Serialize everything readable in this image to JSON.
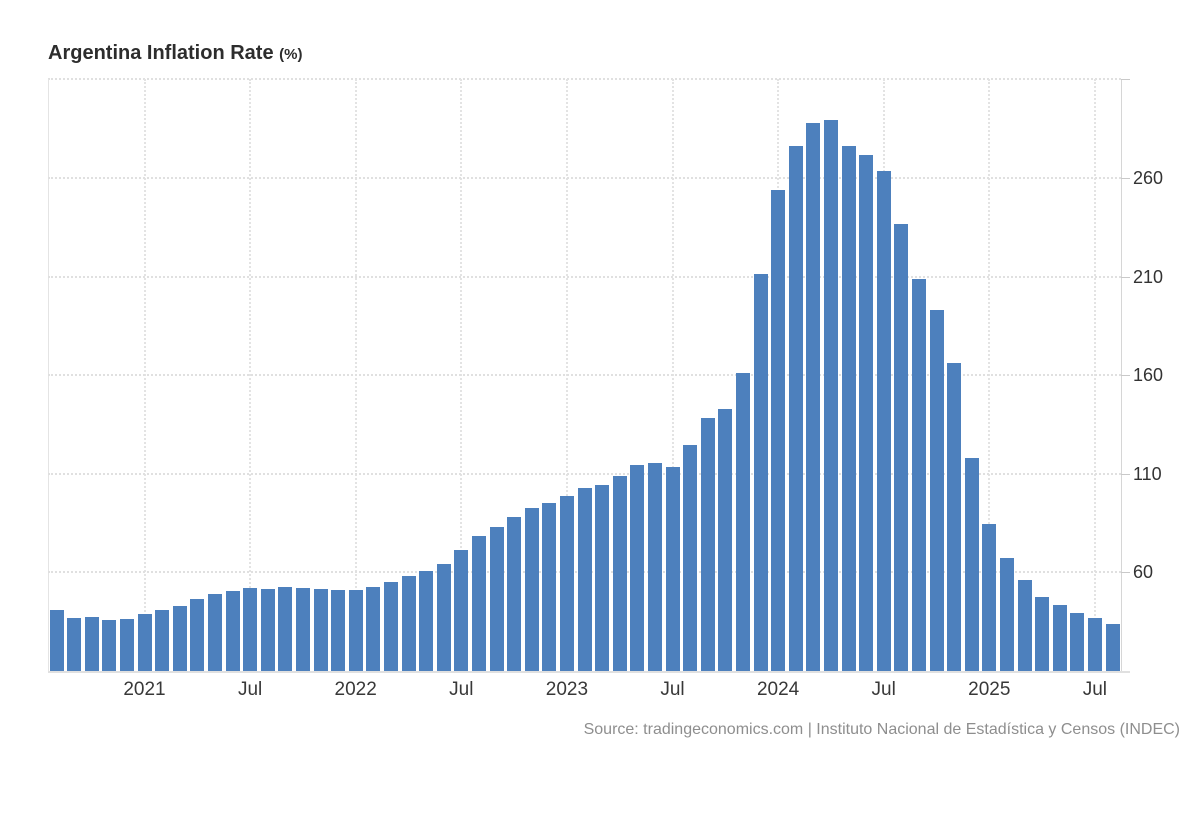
{
  "header": {
    "title": "Argentina Inflation Rate",
    "unit": "(%)"
  },
  "footer": {
    "source_text": "Source: tradingeconomics.com | Instituto Nacional de Estadística y Censos (INDEC)"
  },
  "colors": {
    "bar": "#4d80bd",
    "grid": "#e0e0e0",
    "axis": "#d6d6d6",
    "tick_text": "#333333",
    "source_text": "#8e8e8e"
  },
  "chart_data": {
    "type": "bar",
    "title": "Argentina Inflation Rate (%)",
    "xlabel": "",
    "ylabel": "Inflation Rate (%)",
    "grid": true,
    "legend_position": "none",
    "ylim": [
      9.75,
      310.3
    ],
    "y_ticks": [
      60,
      110,
      160,
      210,
      260
    ],
    "x": [
      "Aug 2020",
      "Sep 2020",
      "Oct 2020",
      "Nov 2020",
      "Dec 2020",
      "Jan 2021",
      "Feb 2021",
      "Mar 2021",
      "Apr 2021",
      "May 2021",
      "Jun 2021",
      "Jul 2021",
      "Aug 2021",
      "Sep 2021",
      "Oct 2021",
      "Nov 2021",
      "Dec 2021",
      "Jan 2022",
      "Feb 2022",
      "Mar 2022",
      "Apr 2022",
      "May 2022",
      "Jun 2022",
      "Jul 2022",
      "Aug 2022",
      "Sep 2022",
      "Oct 2022",
      "Nov 2022",
      "Dec 2022",
      "Jan 2023",
      "Feb 2023",
      "Mar 2023",
      "Apr 2023",
      "May 2023",
      "Jun 2023",
      "Jul 2023",
      "Aug 2023",
      "Sep 2023",
      "Oct 2023",
      "Nov 2023",
      "Dec 2023",
      "Jan 2024",
      "Feb 2024",
      "Mar 2024",
      "Apr 2024",
      "May 2024",
      "Jun 2024",
      "Jul 2024",
      "Aug 2024",
      "Sep 2024",
      "Oct 2024",
      "Nov 2024",
      "Dec 2024",
      "Jan 2025",
      "Feb 2025",
      "Mar 2025",
      "Apr 2025",
      "May 2025",
      "Jun 2025",
      "Jul 2025",
      "Aug 2025"
    ],
    "values": [
      40.7,
      36.6,
      37.2,
      35.8,
      36.1,
      38.5,
      40.7,
      42.6,
      46.3,
      48.8,
      50.2,
      51.8,
      51.4,
      52.5,
      52.1,
      51.2,
      50.9,
      50.7,
      52.3,
      55.1,
      58.0,
      60.7,
      64.0,
      71.0,
      78.5,
      83.0,
      88.0,
      92.4,
      94.8,
      98.8,
      102.5,
      104.3,
      108.8,
      114.2,
      115.6,
      113.4,
      124.4,
      138.3,
      142.7,
      160.9,
      211.4,
      254.2,
      276.2,
      287.9,
      289.4,
      276.4,
      271.5,
      263.4,
      236.7,
      209.0,
      193.0,
      166.0,
      117.8,
      84.5,
      66.9,
      55.9,
      47.3,
      43.5,
      39.4,
      36.6,
      33.6
    ],
    "x_tick_marks": [
      {
        "index": 5,
        "label": "2021"
      },
      {
        "index": 11,
        "label": "Jul"
      },
      {
        "index": 17,
        "label": "2022"
      },
      {
        "index": 23,
        "label": "Jul"
      },
      {
        "index": 29,
        "label": "2023"
      },
      {
        "index": 35,
        "label": "Jul"
      },
      {
        "index": 41,
        "label": "2024"
      },
      {
        "index": 47,
        "label": "Jul"
      },
      {
        "index": 53,
        "label": "2025"
      },
      {
        "index": 59,
        "label": "Jul"
      }
    ]
  }
}
